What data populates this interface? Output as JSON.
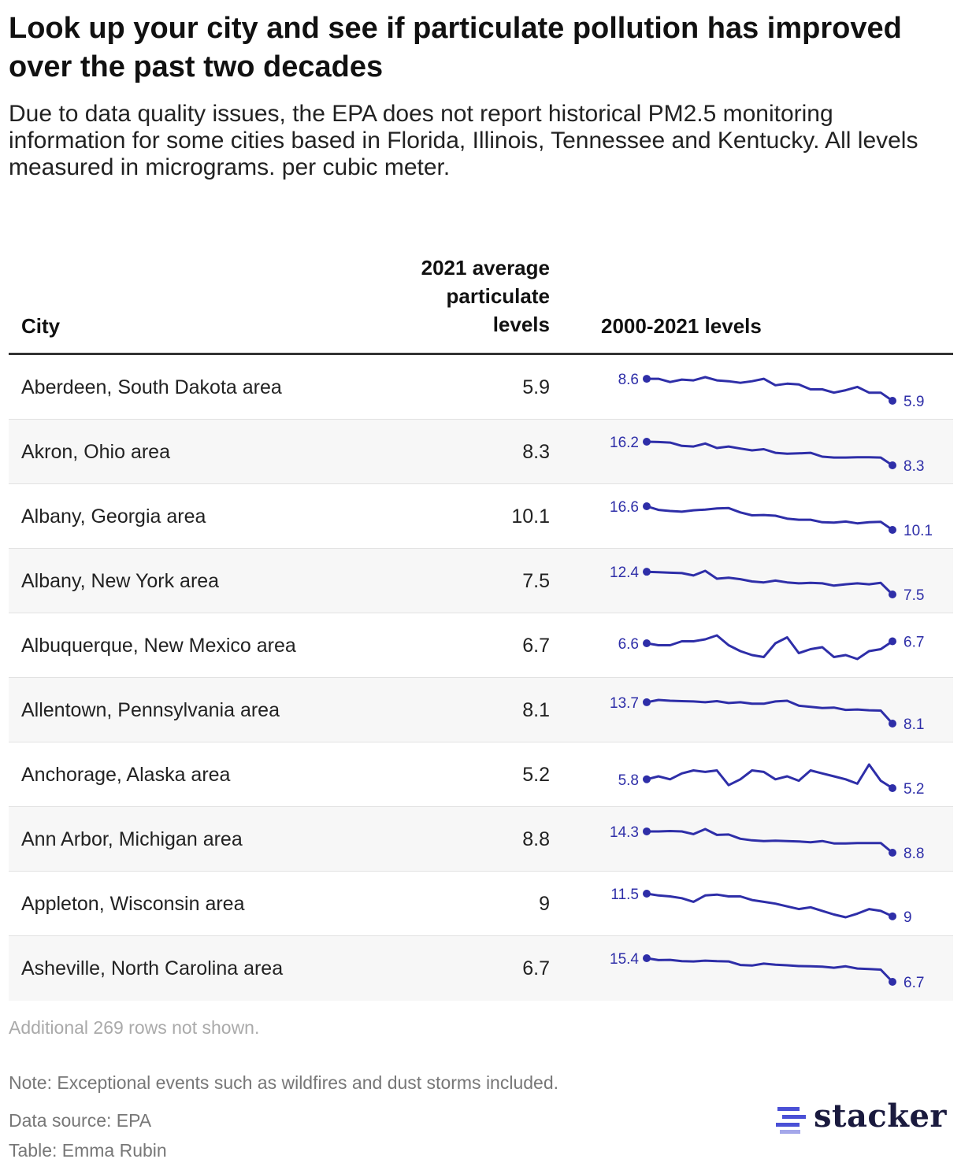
{
  "title": "Look up your city and see if particulate pollution has improved over the past two decades",
  "subtitle": "Due to data quality issues, the EPA does not report historical PM2.5 monitoring information for some cities based in Florida, Illinois, Tennessee and Kentucky. All levels measured in micrograms. per cubic meter.",
  "columns": {
    "city": "City",
    "avg": "2021 average particulate levels",
    "trend": "2000-2021 levels"
  },
  "colors": {
    "line": "#2e2ea8",
    "brand": "#1a1a3e",
    "logo_bars": "#4a50d6"
  },
  "chart_data": {
    "type": "table",
    "x": [
      2000,
      2001,
      2002,
      2003,
      2004,
      2005,
      2006,
      2007,
      2008,
      2009,
      2010,
      2011,
      2012,
      2013,
      2014,
      2015,
      2016,
      2017,
      2018,
      2019,
      2020,
      2021
    ],
    "rows": [
      {
        "city": "Aberdeen, South Dakota area",
        "avg": "5.9",
        "first_label": "8.6",
        "last_label": "5.9",
        "values": [
          8.6,
          8.6,
          8.2,
          8.5,
          8.4,
          8.8,
          8.4,
          8.3,
          8.1,
          8.3,
          8.6,
          7.8,
          8.0,
          7.9,
          7.3,
          7.3,
          6.9,
          7.2,
          7.6,
          6.9,
          6.9,
          5.9
        ]
      },
      {
        "city": "Akron, Ohio area",
        "avg": "8.3",
        "first_label": "16.2",
        "last_label": "8.3",
        "values": [
          16.2,
          16.1,
          15.9,
          14.8,
          14.6,
          15.6,
          14.1,
          14.6,
          13.9,
          13.3,
          13.7,
          12.5,
          12.2,
          12.3,
          12.5,
          11.2,
          10.9,
          10.9,
          11.0,
          11.0,
          10.9,
          8.3
        ]
      },
      {
        "city": "Albany, Georgia area",
        "avg": "10.1",
        "first_label": "16.6",
        "last_label": "10.1",
        "values": [
          16.6,
          15.6,
          15.3,
          15.1,
          15.5,
          15.7,
          16.0,
          16.1,
          14.9,
          14.1,
          14.2,
          14.0,
          13.2,
          12.9,
          12.9,
          12.2,
          12.1,
          12.4,
          11.9,
          12.2,
          12.3,
          10.1
        ]
      },
      {
        "city": "Albany, New York area",
        "avg": "7.5",
        "first_label": "12.4",
        "last_label": "7.5",
        "values": [
          12.4,
          12.3,
          12.2,
          12.1,
          11.6,
          12.6,
          10.9,
          11.1,
          10.8,
          10.3,
          10.1,
          10.5,
          10.1,
          9.9,
          10.0,
          9.9,
          9.4,
          9.7,
          9.9,
          9.7,
          10.0,
          7.5
        ]
      },
      {
        "city": "Albuquerque, New Mexico area",
        "avg": "6.7",
        "first_label": "6.6",
        "last_label": "6.7",
        "values": [
          6.6,
          6.5,
          6.5,
          6.7,
          6.7,
          6.8,
          7.0,
          6.5,
          6.2,
          6.0,
          5.9,
          6.6,
          6.9,
          6.1,
          6.3,
          6.4,
          5.9,
          6.0,
          5.8,
          6.2,
          6.3,
          6.7
        ]
      },
      {
        "city": "Allentown, Pennsylvania area",
        "avg": "8.1",
        "first_label": "13.7",
        "last_label": "8.1",
        "values": [
          13.7,
          14.3,
          14.1,
          14.0,
          13.9,
          13.7,
          14.0,
          13.5,
          13.7,
          13.3,
          13.3,
          13.9,
          14.1,
          12.8,
          12.5,
          12.2,
          12.3,
          11.7,
          11.8,
          11.6,
          11.5,
          8.1
        ]
      },
      {
        "city": "Anchorage, Alaska area",
        "avg": "5.2",
        "first_label": "5.8",
        "last_label": "5.2",
        "values": [
          5.8,
          6.0,
          5.8,
          6.2,
          6.4,
          6.3,
          6.4,
          5.4,
          5.8,
          6.4,
          6.3,
          5.8,
          6.0,
          5.7,
          6.4,
          6.2,
          6.0,
          5.8,
          5.5,
          6.8,
          5.7,
          5.2
        ]
      },
      {
        "city": "Ann Arbor, Michigan area",
        "avg": "8.8",
        "first_label": "14.3",
        "last_label": "8.8",
        "values": [
          14.3,
          14.3,
          14.4,
          14.3,
          13.6,
          14.9,
          13.4,
          13.5,
          12.4,
          12.0,
          11.8,
          11.9,
          11.8,
          11.7,
          11.5,
          11.8,
          11.2,
          11.2,
          11.3,
          11.3,
          11.3,
          8.8
        ]
      },
      {
        "city": "Appleton, Wisconsin area",
        "avg": "9",
        "first_label": "11.5",
        "last_label": "9",
        "values": [
          11.5,
          11.3,
          11.2,
          11.0,
          10.6,
          11.3,
          11.4,
          11.2,
          11.2,
          10.8,
          10.6,
          10.4,
          10.1,
          9.8,
          10.0,
          9.6,
          9.2,
          8.9,
          9.3,
          9.8,
          9.6,
          9
        ]
      },
      {
        "city": "Asheville, North Carolina area",
        "avg": "6.7",
        "first_label": "15.4",
        "last_label": "6.7",
        "values": [
          15.4,
          14.7,
          14.8,
          14.3,
          14.2,
          14.5,
          14.3,
          14.2,
          12.9,
          12.7,
          13.4,
          13.0,
          12.8,
          12.5,
          12.4,
          12.3,
          11.9,
          12.4,
          11.6,
          11.4,
          11.2,
          6.7
        ]
      }
    ]
  },
  "footer": {
    "more_rows": "Additional 269 rows not shown.",
    "note": "Note: Exceptional events such as wildfires and dust storms included.",
    "source": "Data source: EPA",
    "table_credit": "Table: Emma Rubin",
    "logo": "stacker"
  }
}
